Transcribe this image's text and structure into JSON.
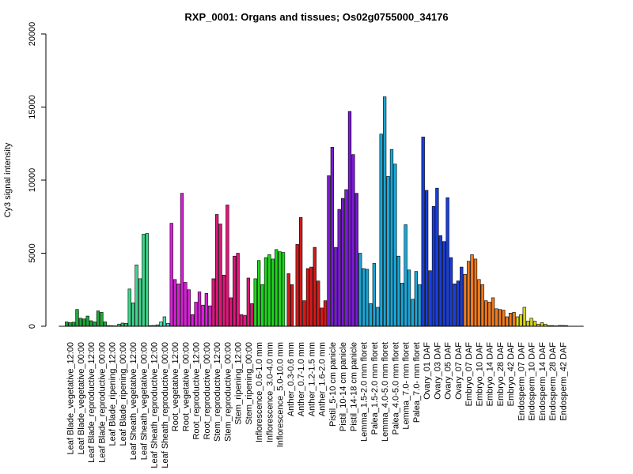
{
  "chart_data": {
    "type": "bar",
    "title": "RXP_0001: Organs and tissues; Os02g0755000_34176",
    "xlabel": "",
    "ylabel": "Cy3 signal intensity",
    "ylim": [
      0,
      20000
    ],
    "yticks": [
      0,
      5000,
      10000,
      15000,
      20000
    ],
    "grid": false,
    "legend": "none",
    "categories": [
      "Leaf Blade_vegetative_12:00",
      "Leaf Blade_vegetative_00:00",
      "Leaf Blade_reproductive_12:00",
      "Leaf Blade_reproductive_00:00",
      "Leaf Blade_ripening_12:00",
      "Leaf Blade_ripening_00:00",
      "Leaf Sheath_vegetative_12:00",
      "Leaf Sheath_vegetative_00:00",
      "Leaf Sheath_reproductive_12:00",
      "Leaf Sheath_reproductive_00:00",
      "Root_vegetative_12:00",
      "Root_vegetative_00:00",
      "Root_reproductive_12:00",
      "Root_reproductive_00:00",
      "Stem_reproductive_12:00",
      "Stem_reproductive_00:00",
      "Stem_ripening_12:00",
      "Stem_ripening_00:00",
      "Inflorescence_0.6-1.0 mm",
      "Inflorescence_3.0-4.0 mm",
      "Inflorescence_5.0-10.0 mm",
      "Anther_0.3-0.6 mm",
      "Anther_0.7-1.0 mm",
      "Anther_1.2-1.5 mm",
      "Anther_1.6-2.0 mm",
      "Pistil_5-10 cm panicle",
      "Pistil_10-14 cm panicle",
      "Pistil_14-18 cm panicle",
      "Lemma_1.5-2.0 mm floret",
      "Palea_1.5-2.0 mm floret",
      "Lemma_4.0-5.0 mm floret",
      "Palea_4.0-5.0 mm floret",
      "Lemma_7.0- mm floret",
      "Palea_7.0- mm floret",
      "Ovary_01 DAF",
      "Ovary_03 DAF",
      "Ovary_05 DAF",
      "Ovary_07 DAF",
      "Embryo_07 DAF",
      "Embryo_10 DAF",
      "Embryo_14 DAF",
      "Embryo_28 DAF",
      "Embryo_42 DAF",
      "Endosperm_07 DAF",
      "Endosperm_10 DAF",
      "Endosperm_14 DAF",
      "Endosperm_28 DAF",
      "Endosperm_42 DAF"
    ],
    "groups": [
      {
        "color": "#1fa83a",
        "values": [
          300,
          250,
          280
        ]
      },
      {
        "color": "#1fa83a",
        "values": [
          1150,
          550,
          500
        ]
      },
      {
        "color": "#1fa83a",
        "values": [
          700,
          380,
          300
        ]
      },
      {
        "color": "#1fa83a",
        "values": [
          1050,
          950,
          300
        ]
      },
      {
        "color": "#35c06a",
        "values": [
          50,
          40,
          30
        ]
      },
      {
        "color": "#35c06a",
        "values": [
          150,
          220,
          200
        ]
      },
      {
        "color": "#3dd68c",
        "values": [
          2550,
          1600,
          4200
        ]
      },
      {
        "color": "#3dd68c",
        "values": [
          3250,
          6300,
          6350
        ]
      },
      {
        "color": "#44e0b0",
        "values": [
          50,
          60,
          100
        ]
      },
      {
        "color": "#44e0b0",
        "values": [
          300,
          650,
          200
        ]
      },
      {
        "color": "#d621d6",
        "values": [
          7050,
          3200,
          2900
        ]
      },
      {
        "color": "#d621d6",
        "values": [
          9100,
          3000,
          2500
        ]
      },
      {
        "color": "#d621d6",
        "values": [
          800,
          1650,
          2350
        ]
      },
      {
        "color": "#d621d6",
        "values": [
          1450,
          2250,
          1400
        ]
      },
      {
        "color": "#e0177a",
        "values": [
          3250,
          7650,
          7000
        ]
      },
      {
        "color": "#e0177a",
        "values": [
          3500,
          8300,
          1950
        ]
      },
      {
        "color": "#e0177a",
        "values": [
          4800,
          5000,
          800
        ]
      },
      {
        "color": "#e0177a",
        "values": [
          750,
          3300,
          1550
        ]
      },
      {
        "color": "#1ed61e",
        "values": [
          3250,
          4500,
          2850
        ]
      },
      {
        "color": "#1ed61e",
        "values": [
          4700,
          4900,
          4600
        ]
      },
      {
        "color": "#1ed61e",
        "values": [
          5250,
          5100,
          5050
        ]
      },
      {
        "color": "#d61a1a",
        "values": [
          3600,
          2850
        ]
      },
      {
        "color": "#d61a1a",
        "values": [
          5600,
          7450,
          1750
        ]
      },
      {
        "color": "#d61a1a",
        "values": [
          3950,
          4050,
          5400
        ]
      },
      {
        "color": "#d61a1a",
        "values": [
          3100,
          1250,
          1750
        ]
      },
      {
        "color": "#7a1ad6",
        "values": [
          10300,
          12250,
          5400
        ]
      },
      {
        "color": "#7a1ad6",
        "values": [
          8000,
          8750,
          9350
        ]
      },
      {
        "color": "#7a1ad6",
        "values": [
          14700,
          11750,
          9100
        ]
      },
      {
        "color": "#1aa6d6",
        "values": [
          5000,
          3950,
          3900
        ]
      },
      {
        "color": "#1aa6d6",
        "values": [
          1550,
          4300,
          1300
        ]
      },
      {
        "color": "#1aa6d6",
        "values": [
          13150,
          15700,
          10250
        ]
      },
      {
        "color": "#1aa6d6",
        "values": [
          12100,
          11100,
          4800
        ]
      },
      {
        "color": "#1aa6d6",
        "values": [
          2950,
          6950,
          3850
        ]
      },
      {
        "color": "#1aa6d6",
        "values": [
          1850,
          3750,
          2850
        ]
      },
      {
        "color": "#1a3ed6",
        "values": [
          12950,
          9300,
          3800
        ]
      },
      {
        "color": "#1a3ed6",
        "values": [
          8200,
          9450,
          6200
        ]
      },
      {
        "color": "#1a3ed6",
        "values": [
          5800,
          8800,
          4700
        ]
      },
      {
        "color": "#1a3ed6",
        "values": [
          2900,
          3100,
          4050
        ]
      },
      {
        "color": "#f07a1e",
        "values": [
          3550,
          4450,
          4900
        ]
      },
      {
        "color": "#f07a1e",
        "values": [
          4600,
          3200,
          2850
        ]
      },
      {
        "color": "#f07a1e",
        "values": [
          1750,
          1650,
          1950
        ]
      },
      {
        "color": "#f07a1e",
        "values": [
          1200,
          1150,
          1100
        ]
      },
      {
        "color": "#f07a1e",
        "values": [
          650,
          900,
          950
        ]
      },
      {
        "color": "#d6d61a",
        "values": [
          650,
          800,
          1300
        ]
      },
      {
        "color": "#d6d61a",
        "values": [
          350,
          550,
          350
        ]
      },
      {
        "color": "#d6d61a",
        "values": [
          150,
          250,
          150
        ]
      },
      {
        "color": "#d6d61a",
        "values": [
          50,
          50,
          30
        ]
      },
      {
        "color": "#d6d61a",
        "values": [
          60,
          60,
          50
        ]
      }
    ]
  }
}
